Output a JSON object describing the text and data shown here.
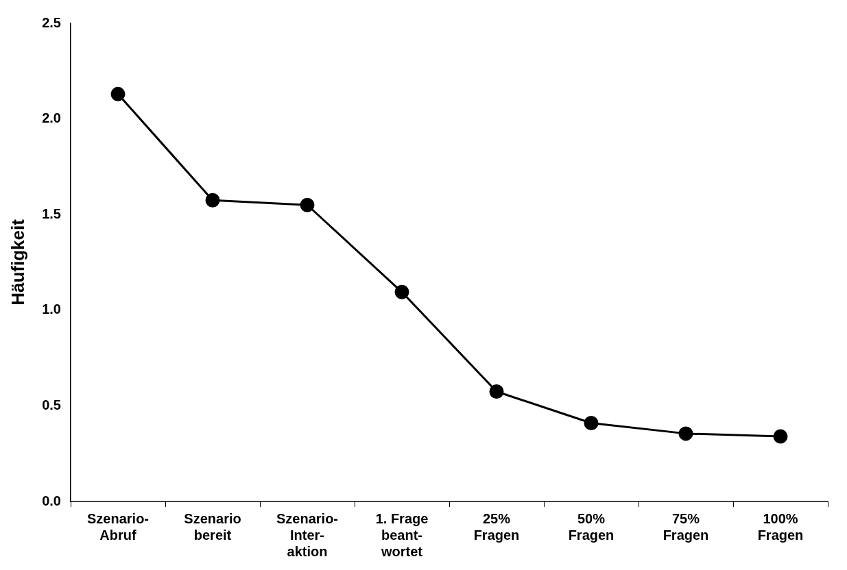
{
  "chart_data": {
    "type": "line",
    "ylabel": "Häufigkeit",
    "categories": [
      "Szenario-\nAbruf",
      "Szenario\nbereit",
      "Szenario-\nInter-\naktion",
      "1. Frage\nbeant-\nwortet",
      "25%\nFragen",
      "50%\nFragen",
      "75%\nFragen",
      "100%\nFragen"
    ],
    "series": [
      {
        "color": "#000000",
        "values": [
          2.13,
          1.575,
          1.55,
          1.095,
          0.575,
          0.41,
          0.355,
          0.34
        ]
      }
    ],
    "ylim": [
      0,
      2.5
    ],
    "yticks": [
      {
        "value": 0,
        "label": "0.0"
      },
      0.5,
      {
        "value": 1,
        "label": "1.0"
      },
      1.5,
      {
        "value": 2,
        "label": "2.0"
      },
      2.5
    ],
    "grid": false,
    "legend": false,
    "marker": "circle",
    "line_style": "solid"
  }
}
